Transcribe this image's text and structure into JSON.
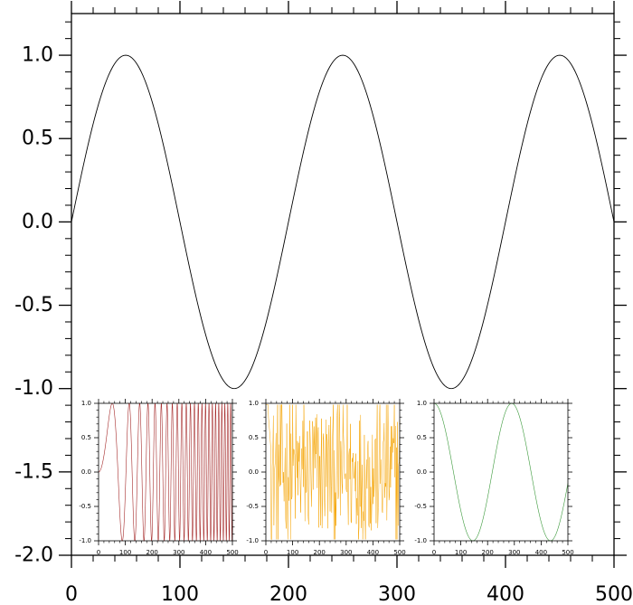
{
  "chart_data": [
    {
      "id": "main",
      "type": "line",
      "function": "sin",
      "period": 200,
      "x_range": [
        0,
        500
      ],
      "xlim": [
        0,
        500
      ],
      "ylim": [
        -2.0,
        1.25
      ],
      "x_ticks": [
        0,
        100,
        200,
        300,
        400,
        500
      ],
      "x_tick_labels": [
        "0",
        "100",
        "200",
        "300",
        "400",
        "500"
      ],
      "y_ticks": [
        -2.0,
        -1.5,
        -1.0,
        -0.5,
        0.0,
        0.5,
        1.0
      ],
      "y_tick_labels": [
        "-2.0",
        "-1.5",
        "-1.0",
        "-0.5",
        "0.0",
        "0.5",
        "1.0"
      ],
      "color": "#000000",
      "grid": false,
      "title": "",
      "xlabel": "",
      "ylabel": ""
    },
    {
      "id": "inset-chirp",
      "type": "line",
      "function": "chirp",
      "description_values": "y = sin(k*x^2), frequency increasing with x",
      "chirp_k": 0.0006,
      "x_range": [
        0,
        500
      ],
      "xlim": [
        0,
        500
      ],
      "ylim": [
        -1.0,
        1.0
      ],
      "x_ticks": [
        0,
        100,
        200,
        300,
        400,
        500
      ],
      "x_tick_labels": [
        "0",
        "100",
        "200",
        "300",
        "400",
        "500"
      ],
      "y_ticks": [
        -1.0,
        -0.5,
        0.0,
        0.5,
        1.0
      ],
      "y_tick_labels": [
        "-1.0",
        "-0.5",
        "0.0",
        "0.5",
        "1.0"
      ],
      "color": "#a52a2a"
    },
    {
      "id": "inset-noise",
      "type": "line",
      "function": "pseudo-random",
      "x_range": [
        0,
        500
      ],
      "xlim": [
        0,
        500
      ],
      "ylim": [
        -1.0,
        1.0
      ],
      "x_ticks": [
        0,
        100,
        200,
        300,
        400,
        500
      ],
      "x_tick_labels": [
        "0",
        "100",
        "200",
        "300",
        "400",
        "500"
      ],
      "y_ticks": [
        -1.0,
        -0.5,
        0.0,
        0.5,
        1.0
      ],
      "y_tick_labels": [
        "-1.0",
        "-0.5",
        "0.0",
        "0.5",
        "1.0"
      ],
      "color": "#f5a300"
    },
    {
      "id": "inset-cos",
      "type": "line",
      "function": "cos",
      "period": 290,
      "x_range": [
        0,
        500
      ],
      "xlim": [
        0,
        500
      ],
      "ylim": [
        -1.0,
        1.0
      ],
      "x_ticks": [
        0,
        100,
        200,
        300,
        400,
        500
      ],
      "x_tick_labels": [
        "0",
        "100",
        "200",
        "300",
        "400",
        "500"
      ],
      "y_ticks": [
        -1.0,
        -0.5,
        0.0,
        0.5,
        1.0
      ],
      "y_tick_labels": [
        "-1.0",
        "-0.5",
        "0.0",
        "0.5",
        "1.0"
      ],
      "color": "#3c9a3c"
    }
  ]
}
